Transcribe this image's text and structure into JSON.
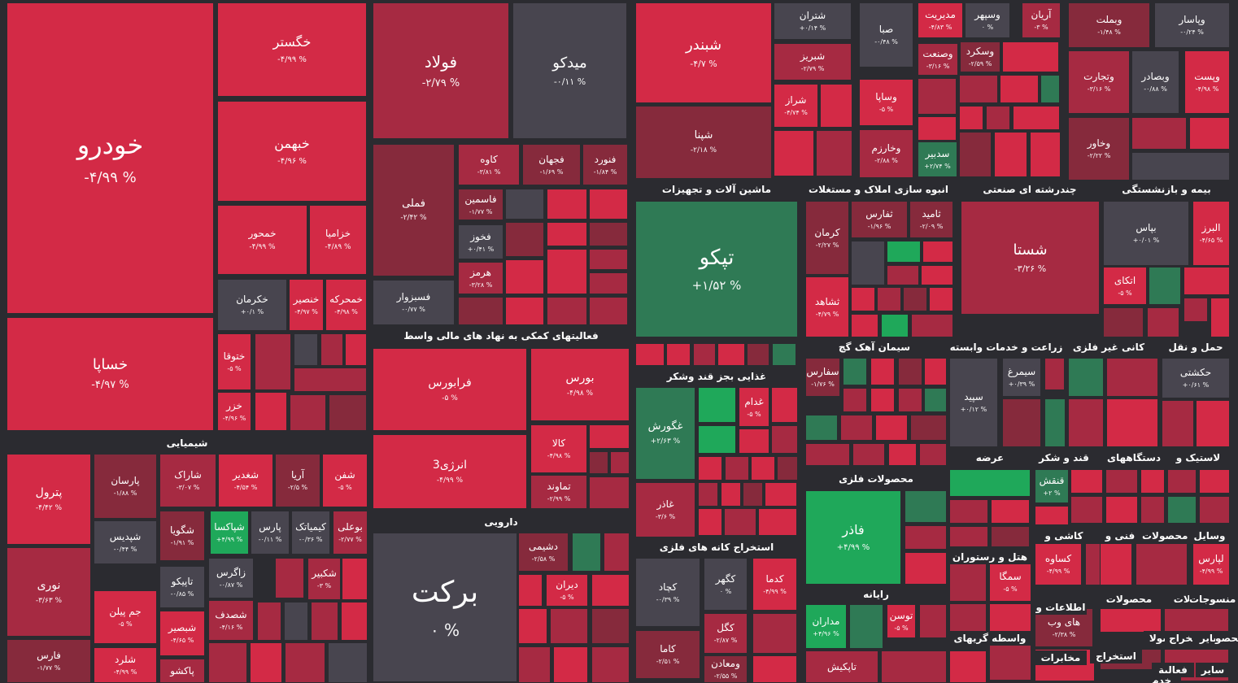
{
  "chart_data": {
    "type": "treemap",
    "colors": {
      "neg_strong": "#d32a46",
      "neg": "#a62a42",
      "neg_dark": "#862a3c",
      "neutral": "#48454f",
      "pos": "#2f7a55",
      "pos_bright": "#1fa85a",
      "bg": "#2b2b30"
    },
    "sectors": [
      {
        "name": "شیمیایی"
      },
      {
        "name": "فعالیتهای کمکی به نهاد های مالی واسط"
      },
      {
        "name": "دارویی"
      },
      {
        "name": "ماشین آلات و تجهیزات"
      },
      {
        "name": "غذایی بجز قند وشکر"
      },
      {
        "name": "استخراج کانه های فلزی"
      },
      {
        "name": "انبوه سازی املاک و مستغلات"
      },
      {
        "name": "سیمان آهک گچ"
      },
      {
        "name": "محصولات فلزی"
      },
      {
        "name": "رایانه"
      },
      {
        "name": "چندرشته ای صنعتی"
      },
      {
        "name": "زراعت و خدمات وابسته"
      },
      {
        "name": "عرضه"
      },
      {
        "name": "هتل و رستوران"
      },
      {
        "name": "واسطه گریهای"
      },
      {
        "name": "بیمه و بازنشستگی"
      },
      {
        "name": "کانی غیر فلزی"
      },
      {
        "name": "حمل و نقل"
      },
      {
        "name": "قند و شکر"
      },
      {
        "name": "دستگاههای"
      },
      {
        "name": "لاستیک و"
      },
      {
        "name": "کاشی و"
      },
      {
        "name": "فنی و"
      },
      {
        "name": "محصولات"
      },
      {
        "name": "وسایل"
      },
      {
        "name": "اطلاعات و"
      },
      {
        "name": "محصولات"
      },
      {
        "name": "محصولات"
      },
      {
        "name": "منسوجات"
      },
      {
        "name": "مخابرات"
      },
      {
        "name": "استخراج"
      },
      {
        "name": "محصولا"
      },
      {
        "name": "استخراج"
      },
      {
        "name": "سایر"
      },
      {
        "name": "محصو"
      },
      {
        "name": "ساير"
      },
      {
        "name": "فعالیة"
      },
      {
        "name": "خدم"
      }
    ],
    "stocks": [
      {
        "name": "خودرو",
        "change": "-۴/۹۹ %",
        "value": -4.99
      },
      {
        "name": "خساپا",
        "change": "-۴/۹۷ %",
        "value": -4.97
      },
      {
        "name": "خگستر",
        "change": "-۴/۹۹ %",
        "value": -4.99
      },
      {
        "name": "خبهمن",
        "change": "-۴/۹۶ %",
        "value": -4.96
      },
      {
        "name": "خمحور",
        "change": "-۴/۹۹ %",
        "value": -4.99
      },
      {
        "name": "خزامیا",
        "change": "-۴/۸۹ %",
        "value": -4.89
      },
      {
        "name": "خکرمان",
        "change": "+۰/۱ %",
        "value": 0.1
      },
      {
        "name": "خنصیر",
        "change": "-۴/۹۷ %",
        "value": -4.97
      },
      {
        "name": "خمحرکه",
        "change": "-۴/۹۸ %",
        "value": -4.98
      },
      {
        "name": "ختوقا",
        "change": "-۵ %",
        "value": -5
      },
      {
        "name": "خزر",
        "change": "-۴/۹۶ %",
        "value": -4.96
      },
      {
        "name": "فولاد",
        "change": "-۲/۷۹ %",
        "value": -2.79
      },
      {
        "name": "میدکو",
        "change": "-۰/۱۱ %",
        "value": -0.11
      },
      {
        "name": "فملی",
        "change": "-۲/۴۲ %",
        "value": -2.42
      },
      {
        "name": "کاوه",
        "change": "-۳/۸۱ %",
        "value": -3.81
      },
      {
        "name": "فجهان",
        "change": "-۱/۶۹ %",
        "value": -1.69
      },
      {
        "name": "فنورد",
        "change": "-۱/۸۴ %",
        "value": -1.84
      },
      {
        "name": "فاسمین",
        "change": "-۱/۷۷ %",
        "value": -1.77
      },
      {
        "name": "فخوز",
        "change": "+۰/۴۱ %",
        "value": 0.41
      },
      {
        "name": "هرمز",
        "change": "-۳/۲۸ %",
        "value": -3.28
      },
      {
        "name": "فسبزوار",
        "change": "-۰/۷۷ %",
        "value": -0.77
      },
      {
        "name": "فرابورس",
        "change": "-۵ %",
        "value": -5
      },
      {
        "name": "بورس",
        "change": "-۴/۹۸ %",
        "value": -4.98
      },
      {
        "name": "کالا",
        "change": "-۴/۹۸ %",
        "value": -4.98
      },
      {
        "name": "تماوند",
        "change": "-۲/۹۹ %",
        "value": -2.99
      },
      {
        "name": "انرژی3",
        "change": "-۴/۹۹ %",
        "value": -4.99
      },
      {
        "name": "برکت",
        "change": "۰ %",
        "value": 0
      },
      {
        "name": "دشیمی",
        "change": "-۲/۵۸ %",
        "value": -2.58
      },
      {
        "name": "دیران",
        "change": "-۵ %",
        "value": -5
      },
      {
        "name": "شپنا",
        "change": "-۲/۱۸ %",
        "value": -2.18
      },
      {
        "name": "شبندر",
        "change": "-۴/۷ %",
        "value": -4.7
      },
      {
        "name": "شتران",
        "change": "+۰/۱۴ %",
        "value": 0.14
      },
      {
        "name": "شبریز",
        "change": "-۲/۷۹ %",
        "value": -2.79
      },
      {
        "name": "شراز",
        "change": "-۴/۷۴ %",
        "value": -4.74
      },
      {
        "name": "تپکو",
        "change": "+۱/۵۲ %",
        "value": 1.52
      },
      {
        "name": "غگورش",
        "change": "+۲/۶۳ %",
        "value": 2.63
      },
      {
        "name": "غدام",
        "change": "-۵ %",
        "value": -5
      },
      {
        "name": "غاذر",
        "change": "-۳/۶ %",
        "value": -3.6
      },
      {
        "name": "کچاد",
        "change": "-۰/۳۹ %",
        "value": -0.39
      },
      {
        "name": "کگهر",
        "change": "۰ %",
        "value": 0
      },
      {
        "name": "کدما",
        "change": "-۴/۹۹ %",
        "value": -4.99
      },
      {
        "name": "کگل",
        "change": "-۲/۸۷ %",
        "value": -2.87
      },
      {
        "name": "کاما",
        "change": "-۲/۵۱ %",
        "value": -2.51
      },
      {
        "name": "ومعادن",
        "change": "-۲/۵۵ %",
        "value": -2.55
      },
      {
        "name": "صبا",
        "change": "-۰/۴۸ %",
        "value": -0.48
      },
      {
        "name": "وساپا",
        "change": "-۵ %",
        "value": -5
      },
      {
        "name": "وخارزم",
        "change": "-۲/۸۸ %",
        "value": -2.88
      },
      {
        "name": "مدیریت",
        "change": "-۴/۸۳ %",
        "value": -4.83
      },
      {
        "name": "وسپهر",
        "change": "۰ %",
        "value": 0
      },
      {
        "name": "آریان",
        "change": "-۳ %",
        "value": -3
      },
      {
        "name": "وسکرد",
        "change": "-۲/۵۹ %",
        "value": -2.59
      },
      {
        "name": "وصنعت",
        "change": "-۳/۱۶ %",
        "value": -3.16
      },
      {
        "name": "سدبیر",
        "change": "+۲/۷۴ %",
        "value": 2.74
      },
      {
        "name": "وبملت",
        "change": "-۱/۴۸ %",
        "value": -1.48
      },
      {
        "name": "وپاسار",
        "change": "-۰/۲۴ %",
        "value": -0.24
      },
      {
        "name": "وتجارت",
        "change": "-۳/۱۶ %",
        "value": -3.16
      },
      {
        "name": "وبصادر",
        "change": "-۰/۸۸ %",
        "value": -0.88
      },
      {
        "name": "وپست",
        "change": "-۴/۹۸ %",
        "value": -4.98
      },
      {
        "name": "وخاور",
        "change": "-۲/۲۲ %",
        "value": -2.22
      },
      {
        "name": "کرمان",
        "change": "-۲/۲۷ %",
        "value": -2.27
      },
      {
        "name": "ثفارس",
        "change": "-۱/۹۶ %",
        "value": -1.96
      },
      {
        "name": "ثامید",
        "change": "-۲/۰۹ %",
        "value": -2.09
      },
      {
        "name": "ثشاهد",
        "change": "-۴/۷۹ %",
        "value": -4.79
      },
      {
        "name": "شستا",
        "change": "-۳/۲۶ %",
        "value": -3.26
      },
      {
        "name": "بپاس",
        "change": "+۰/۰۱ %",
        "value": 0.01
      },
      {
        "name": "البرز",
        "change": "-۴/۶۵ %",
        "value": -4.65
      },
      {
        "name": "اتکای",
        "change": "-۵ %",
        "value": -5
      },
      {
        "name": "سفارس",
        "change": "-۱/۷۶ %",
        "value": -1.76
      },
      {
        "name": "فاذر",
        "change": "+۴/۹۹ %",
        "value": 4.99
      },
      {
        "name": "سیمرغ",
        "change": "+۰/۳۹ %",
        "value": 0.39
      },
      {
        "name": "سپید",
        "change": "+۰/۱۲ %",
        "value": 0.12
      },
      {
        "name": "حکشتی",
        "change": "+۰/۶۱ %",
        "value": 0.61
      },
      {
        "name": "قنقش",
        "change": "+۲ %",
        "value": 2
      },
      {
        "name": "پترول",
        "change": "-۴/۴۲ %",
        "value": -4.42
      },
      {
        "name": "پارسان",
        "change": "-۱/۸۸ %",
        "value": -1.88
      },
      {
        "name": "شاراک",
        "change": "-۳/۰۷ %",
        "value": -3.07
      },
      {
        "name": "شغدیر",
        "change": "-۴/۵۴ %",
        "value": -4.54
      },
      {
        "name": "آریا",
        "change": "-۲/۵ %",
        "value": -2.5
      },
      {
        "name": "شفن",
        "change": "-۵ %",
        "value": -5
      },
      {
        "name": "شپدیس",
        "change": "-۰/۴۴ %",
        "value": -0.44
      },
      {
        "name": "شگویا",
        "change": "-۱/۹۱ %",
        "value": -1.91
      },
      {
        "name": "شپاکسا",
        "change": "+۴/۹۹ %",
        "value": 4.99
      },
      {
        "name": "پارس",
        "change": "-۰/۱۱ %",
        "value": -0.11
      },
      {
        "name": "کیمیاتک",
        "change": "-۰/۳۶ %",
        "value": -0.36
      },
      {
        "name": "بوعلی",
        "change": "-۲/۷۷ %",
        "value": -2.77
      },
      {
        "name": "نوری",
        "change": "-۳/۶۳ %",
        "value": -3.63
      },
      {
        "name": "جم پیلن",
        "change": "-۵ %",
        "value": -5
      },
      {
        "name": "زاگرس",
        "change": "-۰/۸۷ %",
        "value": -0.87
      },
      {
        "name": "شکبیر",
        "change": "-۳ %",
        "value": -3
      },
      {
        "name": "تاپیکو",
        "change": "-۰/۸۵ %",
        "value": -0.85
      },
      {
        "name": "شصدف",
        "change": "-۴/۱۶ %",
        "value": -4.16
      },
      {
        "name": "شبصیر",
        "change": "-۴/۶۵ %",
        "value": -4.65
      },
      {
        "name": "فارس",
        "change": "-۱/۷۷ %",
        "value": -1.77
      },
      {
        "name": "شلرد",
        "change": "-۴/۹۹ %",
        "value": -4.99
      },
      {
        "name": "پاکشو",
        "change": "",
        "value": null
      },
      {
        "name": "مداران",
        "change": "+۴/۹۶ %",
        "value": 4.96
      },
      {
        "name": "توسن",
        "change": "-۵ %",
        "value": -5
      },
      {
        "name": "تاپکیش",
        "change": "",
        "value": null
      },
      {
        "name": "سمگا",
        "change": "-۵ %",
        "value": -5
      },
      {
        "name": "کساوه",
        "change": "-۴/۹۹ %",
        "value": -4.99
      },
      {
        "name": "های وب",
        "change": "-۲/۳۸ %",
        "value": -2.38
      },
      {
        "name": "لپارس",
        "change": "-۴/۹۹ %",
        "value": -4.99
      }
    ]
  }
}
